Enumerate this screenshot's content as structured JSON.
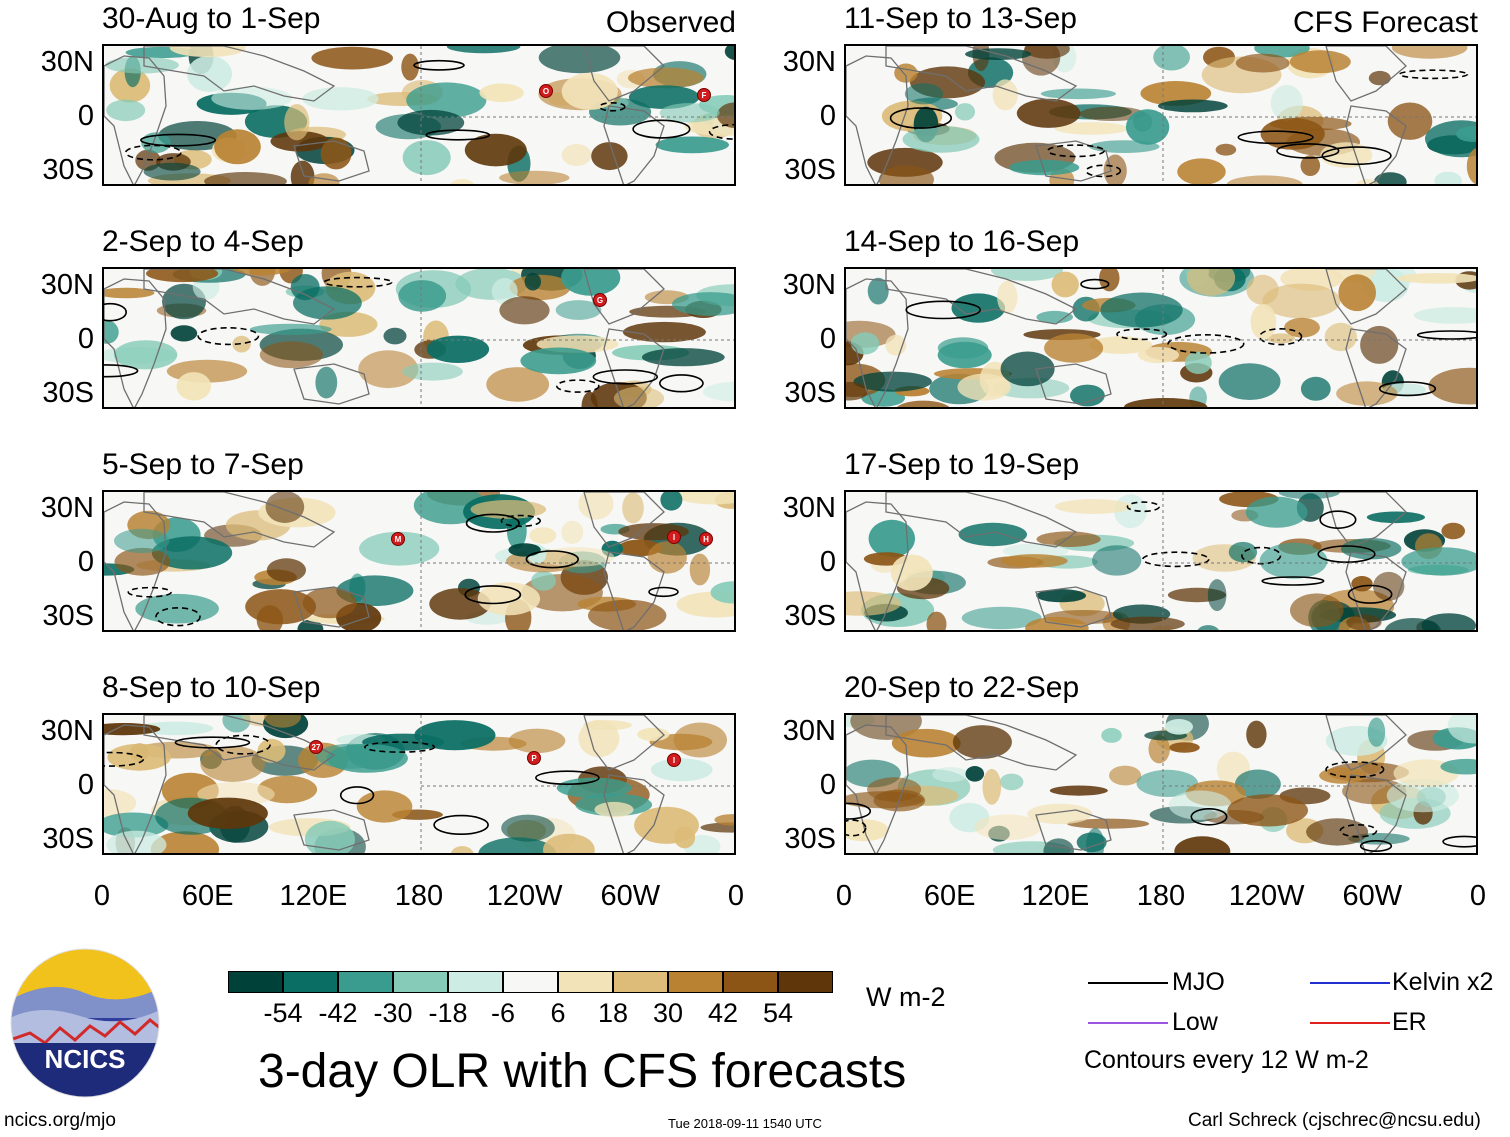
{
  "chart_data": {
    "type": "heatmap",
    "title": "3-day OLR with CFS forecasts",
    "units": "W m-2",
    "lat_labels": [
      "30N",
      "0",
      "30S"
    ],
    "lon_labels": [
      "0",
      "60E",
      "120E",
      "180",
      "120W",
      "60W",
      "0"
    ],
    "observed_label": "Observed",
    "forecast_label": "CFS Forecast",
    "panels": [
      {
        "period": "30-Aug to 1-Sep",
        "kind": "observed",
        "storms": [
          "O",
          "F"
        ]
      },
      {
        "period": "2-Sep to 4-Sep",
        "kind": "observed",
        "storms": [
          "G"
        ]
      },
      {
        "period": "5-Sep to 7-Sep",
        "kind": "observed",
        "storms": [
          "M",
          "I",
          "H"
        ]
      },
      {
        "period": "8-Sep to 10-Sep",
        "kind": "observed",
        "storms": [
          "27",
          "P",
          "I"
        ]
      },
      {
        "period": "11-Sep to 13-Sep",
        "kind": "forecast",
        "storms": []
      },
      {
        "period": "14-Sep to 16-Sep",
        "kind": "forecast",
        "storms": []
      },
      {
        "period": "17-Sep to 19-Sep",
        "kind": "forecast",
        "storms": []
      },
      {
        "period": "20-Sep to 22-Sep",
        "kind": "forecast",
        "storms": []
      }
    ],
    "colorbar": {
      "ticks": [
        "-54",
        "-42",
        "-30",
        "-18",
        "-6",
        "6",
        "18",
        "30",
        "42",
        "54"
      ],
      "colors": [
        "#00423a",
        "#0b6e64",
        "#3a9c8e",
        "#86cbb8",
        "#cdece3",
        "#f7f7f5",
        "#f2e3b8",
        "#dcbc78",
        "#b98233",
        "#8c5516",
        "#5e360a"
      ]
    },
    "legend": [
      {
        "label": "MJO",
        "color": "#000000"
      },
      {
        "label": "Kelvin x2",
        "color": "#1f2fd0"
      },
      {
        "label": "Low",
        "color": "#9b55e0"
      },
      {
        "label": "ER",
        "color": "#e0201e"
      }
    ],
    "contour_note": "Contours every 12 W m-2"
  },
  "logo_text": "NCICS",
  "footer": {
    "url": "ncics.org/mjo",
    "timestamp": "Tue 2018-09-11 1540 UTC",
    "author": "Carl Schreck (cjschrec@ncsu.edu)"
  }
}
